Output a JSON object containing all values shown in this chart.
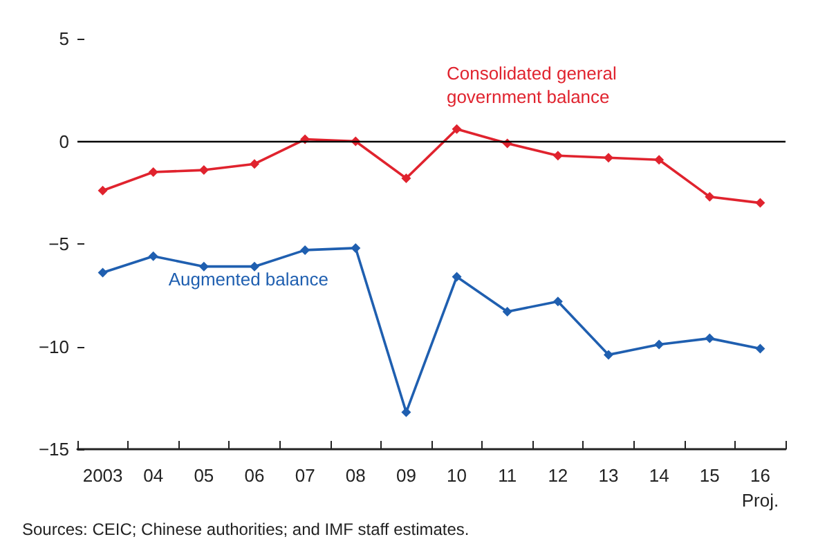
{
  "chart_data": {
    "type": "line",
    "categories": [
      "2003",
      "04",
      "05",
      "06",
      "07",
      "08",
      "09",
      "10",
      "11",
      "12",
      "13",
      "14",
      "15",
      "16\nProj."
    ],
    "series": [
      {
        "name": "Consolidated general\ngovernment balance",
        "color": "#e0232e",
        "values": [
          -2.4,
          -1.5,
          -1.4,
          -1.1,
          0.1,
          0,
          -1.8,
          0.6,
          -0.1,
          -0.7,
          -0.8,
          -0.9,
          -2.7,
          -3.0
        ]
      },
      {
        "name": "Augmented balance",
        "color": "#1f5fb0",
        "values": [
          -6.4,
          -5.6,
          -6.1,
          -6.1,
          -5.3,
          -5.2,
          -13.2,
          -6.6,
          -8.3,
          -7.8,
          -10.4,
          -9.9,
          -9.6,
          -10.1
        ]
      }
    ],
    "ylim": [
      -15,
      5
    ],
    "yticks": [
      -15,
      -10,
      -5,
      0,
      5
    ],
    "ref_lines": [
      {
        "axis": "y",
        "value": 0,
        "color": "#000000"
      }
    ],
    "annotations": [
      "Sources: CEIC; Chinese authorities; and IMF staff estimates."
    ],
    "grid": false,
    "legend": false,
    "marker": "diamond",
    "line_style": "solid"
  }
}
